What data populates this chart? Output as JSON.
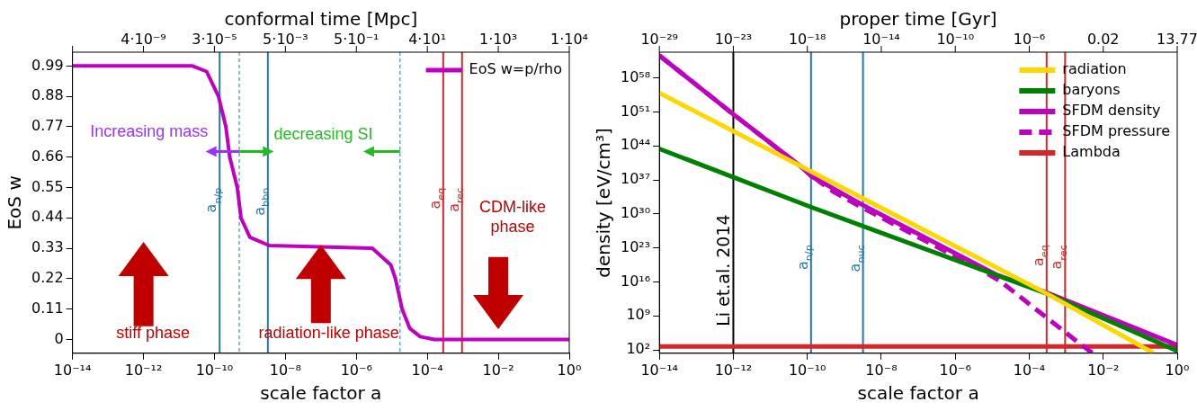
{
  "chart_data": [
    {
      "type": "line",
      "xlabel": "scale factor a",
      "ylabel": "EoS w",
      "x2label": "conformal time [Mpc]",
      "log": "x",
      "grid": false,
      "legend": "top right",
      "marker": "none",
      "xlim": [
        1e-14,
        1
      ],
      "xticks": [
        {
          "value": 1e-14,
          "label": "10⁻¹⁴"
        },
        {
          "value": 1e-12,
          "label": "10⁻¹²"
        },
        {
          "value": 1e-10,
          "label": "10⁻¹⁰"
        },
        {
          "value": 1e-08,
          "label": "10⁻⁸"
        },
        {
          "value": 1e-06,
          "label": "10⁻⁶"
        },
        {
          "value": 0.0001,
          "label": "10⁻⁴"
        },
        {
          "value": 0.01,
          "label": "10⁻²"
        },
        {
          "value": 1,
          "label": "10⁰"
        }
      ],
      "ylim": [
        -0.05,
        1.04
      ],
      "yticks": [
        0,
        0.11,
        0.22,
        0.33,
        0.44,
        0.55,
        0.66,
        0.77,
        0.88,
        0.99
      ],
      "series": [
        {
          "name": "EoS w=p/rho",
          "color": "#c000c0",
          "x": [
            1e-14,
            2.4e-11,
            6e-11,
            1.3e-10,
            2.1e-10,
            2.7e-10,
            4.4e-10,
            5.6e-10,
            1e-09,
            3.5e-09,
            2.8e-06,
            9.3e-06,
            1.26e-05,
            1.95e-05,
            3.2e-05,
            6.3e-05,
            0.00016,
            1
          ],
          "values": [
            0.99,
            0.99,
            0.97,
            0.88,
            0.77,
            0.66,
            0.55,
            0.44,
            0.37,
            0.34,
            0.33,
            0.27,
            0.22,
            0.11,
            0.04,
            0.01,
            0,
            0
          ]
        }
      ],
      "ref_lines": [
        {
          "axis": "x",
          "value": 1.4e-10,
          "label": "a$_{n/p}$",
          "color": "#1f77b4"
        },
        {
          "axis": "x",
          "value": 3.2e-09,
          "label": "a$_{bbn}$",
          "color": "#1f77b4"
        },
        {
          "axis": "x",
          "value": 0.00028,
          "label": "a$_{eq}$",
          "color": "#d62728"
        },
        {
          "axis": "x",
          "value": 0.00095,
          "label": "a$_{rec}$",
          "color": "#d62728"
        },
        {
          "axis": "x",
          "value": 5e-10,
          "color": "#1f77b4",
          "line_style": "dashed"
        },
        {
          "axis": "x",
          "value": 1.7e-05,
          "color": "#1f77b4",
          "line_style": "dashed"
        }
      ],
      "annotations": [
        "4·10⁻⁹",
        "3·10⁻⁵",
        "5·10⁻³",
        "5·10⁻¹",
        "4·10¹",
        "1·10³",
        "1·10⁴",
        "Increasing mass",
        {
          "text": "decreasing SI",
          "x": 1.7e-05,
          "y": 0.68
        },
        "stiff phase",
        "radiation-like phase",
        "CDM-like phase"
      ]
    },
    {
      "type": "line",
      "xlabel": "scale factor a",
      "ylabel": "density [eV/cm³]",
      "x2label": "proper time [Gyr]",
      "log": "xy",
      "grid": false,
      "legend": "top right",
      "marker": "none",
      "xlim": [
        1e-14,
        1
      ],
      "xticks": [
        {
          "value": 1e-14,
          "label": "10⁻¹⁴"
        },
        {
          "value": 1e-12,
          "label": "10⁻¹²"
        },
        {
          "value": 1e-10,
          "label": "10⁻¹⁰"
        },
        {
          "value": 1e-08,
          "label": "10⁻⁸"
        },
        {
          "value": 1e-06,
          "label": "10⁻⁶"
        },
        {
          "value": 0.0001,
          "label": "10⁻⁴"
        },
        {
          "value": 0.01,
          "label": "10⁻²"
        },
        {
          "value": 1,
          "label": "10⁰"
        }
      ],
      "annotations": [
        "10⁻²⁹",
        "10⁻²³",
        "10⁻¹⁸",
        "10⁻¹⁴",
        "10⁻¹⁰",
        "10⁻⁶",
        "0.02",
        "13.77"
      ],
      "ylim": [
        20,
        2e+63
      ],
      "yticks": [
        {
          "value": 100.0,
          "label": "10²"
        },
        {
          "value": 1000000000.0,
          "label": "10⁹"
        },
        {
          "value": 1e+16,
          "label": "10¹⁶"
        },
        {
          "value": 1e+23,
          "label": "10²³"
        },
        {
          "value": 1e+30,
          "label": "10³⁰"
        },
        {
          "value": 1e+37,
          "label": "10³⁷"
        },
        {
          "value": 1e+44,
          "label": "10⁴⁴"
        },
        {
          "value": 1e+51,
          "label": "10⁵¹"
        },
        {
          "value": 1e+58,
          "label": "10⁵⁸"
        }
      ],
      "series": [
        {
          "name": "radiation",
          "color": "#ffd700",
          "x": [
            1e-14,
            0.000295,
            0.22
          ],
          "values": [
            7.9e+54,
            40000000000000.0,
            25
          ]
        },
        {
          "name": "baryons",
          "color": "#008000",
          "x": [
            1e-14,
            1.26e-10,
            0.000295,
            1
          ],
          "values": [
            2.5e+43,
            2.5e+31,
            40000000000000.0,
            63
          ]
        },
        {
          "name": "SFDM density",
          "color": "#c000c0",
          "x": [
            1e-14,
            1e-12,
            7.9e-11,
            1.26e-10,
            2.5e-10,
            3.2e-09,
            5e-06,
            1.26e-05,
            0.000295,
            1
          ],
          "values": [
            4e+62,
            3.2e+50,
            2e+39,
            6.3e+37,
            3.2e+36,
            6.3e+31,
            1.26e+19,
            3.2e+17,
            63000000000000.0,
            1000
          ]
        },
        {
          "name": "SFDM pressure",
          "color": "#c000c0",
          "line_style": "dashed",
          "x": [
            1e-14,
            1e-12,
            7.9e-11,
            2e-10,
            5e-10,
            3.2e-09,
            1e-07,
            5e-06,
            1.66e-05,
            0.0019,
            0.005
          ],
          "values": [
            4e+62,
            3.2e+50,
            2e+39,
            6.3e+36,
            4e+34,
            1.6e+31,
            1.6e+25,
            3.2e+18,
            1.26e+16,
            6300,
            25
          ]
        },
        {
          "name": "Lambda",
          "color": "#d62728",
          "x": [
            1e-14,
            1
          ],
          "values": [
            500,
            500
          ]
        }
      ],
      "ref_lines": [
        {
          "axis": "x",
          "value": 1e-12,
          "label": "Li et.al. 2014",
          "color": "#000000"
        },
        {
          "axis": "x",
          "value": 1.26e-10,
          "label": "a$_{n/p}$",
          "color": "#1f77b4"
        },
        {
          "axis": "x",
          "value": 3.2e-09,
          "label": "a$_{nuc}$",
          "color": "#1f77b4"
        },
        {
          "axis": "x",
          "value": 0.000295,
          "label": "a$_{eq}$",
          "color": "#d62728"
        },
        {
          "axis": "x",
          "value": 0.00093,
          "label": "a$_{rec}$",
          "color": "#d62728"
        }
      ]
    }
  ]
}
